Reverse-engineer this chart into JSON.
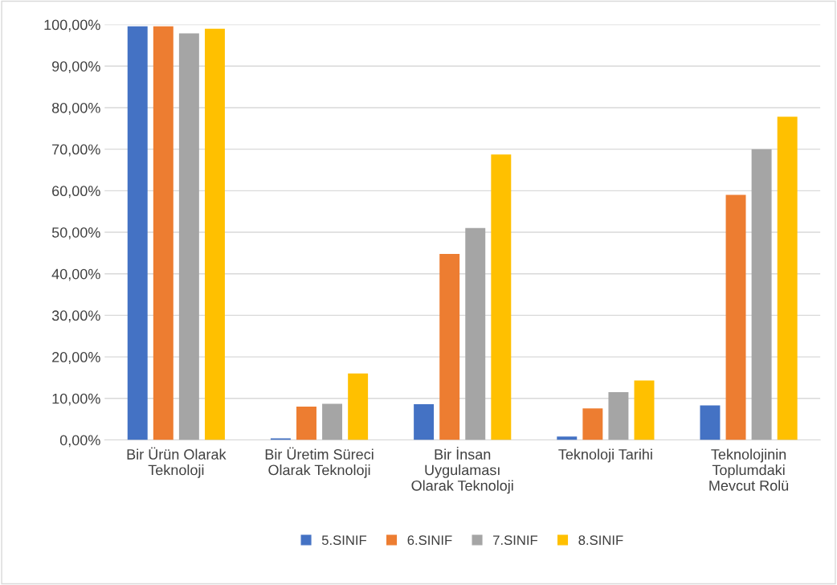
{
  "chart_data": {
    "type": "bar",
    "categories": [
      "Bir Ürün Olarak\nTeknoloji",
      "Bir Üretim Süreci\nOlarak Teknoloji",
      "Bir İnsan\nUygulaması\nOlarak Teknoloji",
      "Teknoloji Tarihi",
      "Teknolojinin\nToplumdaki\nMevcut Rolü"
    ],
    "series": [
      {
        "name": "5.SINIF",
        "color": "#4472c4",
        "values": [
          99.6,
          0.4,
          8.6,
          0.8,
          8.3
        ]
      },
      {
        "name": "6.SINIF",
        "color": "#ed7d31",
        "values": [
          99.6,
          8.0,
          44.8,
          7.6,
          59.0
        ]
      },
      {
        "name": "7.SINIF",
        "color": "#a5a5a5",
        "values": [
          97.9,
          8.7,
          51.0,
          11.5,
          70.0
        ]
      },
      {
        "name": "8.SINIF",
        "color": "#ffc000",
        "values": [
          99.0,
          16.0,
          68.7,
          14.3,
          77.8
        ]
      }
    ],
    "ylim": [
      0,
      100
    ],
    "yticks": [
      {
        "value": 0,
        "label": "0,00%"
      },
      {
        "value": 10,
        "label": "10,00%"
      },
      {
        "value": 20,
        "label": "20,00%"
      },
      {
        "value": 30,
        "label": "30,00%"
      },
      {
        "value": 40,
        "label": "40,00%"
      },
      {
        "value": 50,
        "label": "50,00%"
      },
      {
        "value": 60,
        "label": "60,00%"
      },
      {
        "value": 70,
        "label": "70,00%"
      },
      {
        "value": 80,
        "label": "80,00%"
      },
      {
        "value": 90,
        "label": "90,00%"
      },
      {
        "value": 100,
        "label": "100,00%"
      }
    ],
    "grid": "y",
    "legend": "bottom"
  }
}
